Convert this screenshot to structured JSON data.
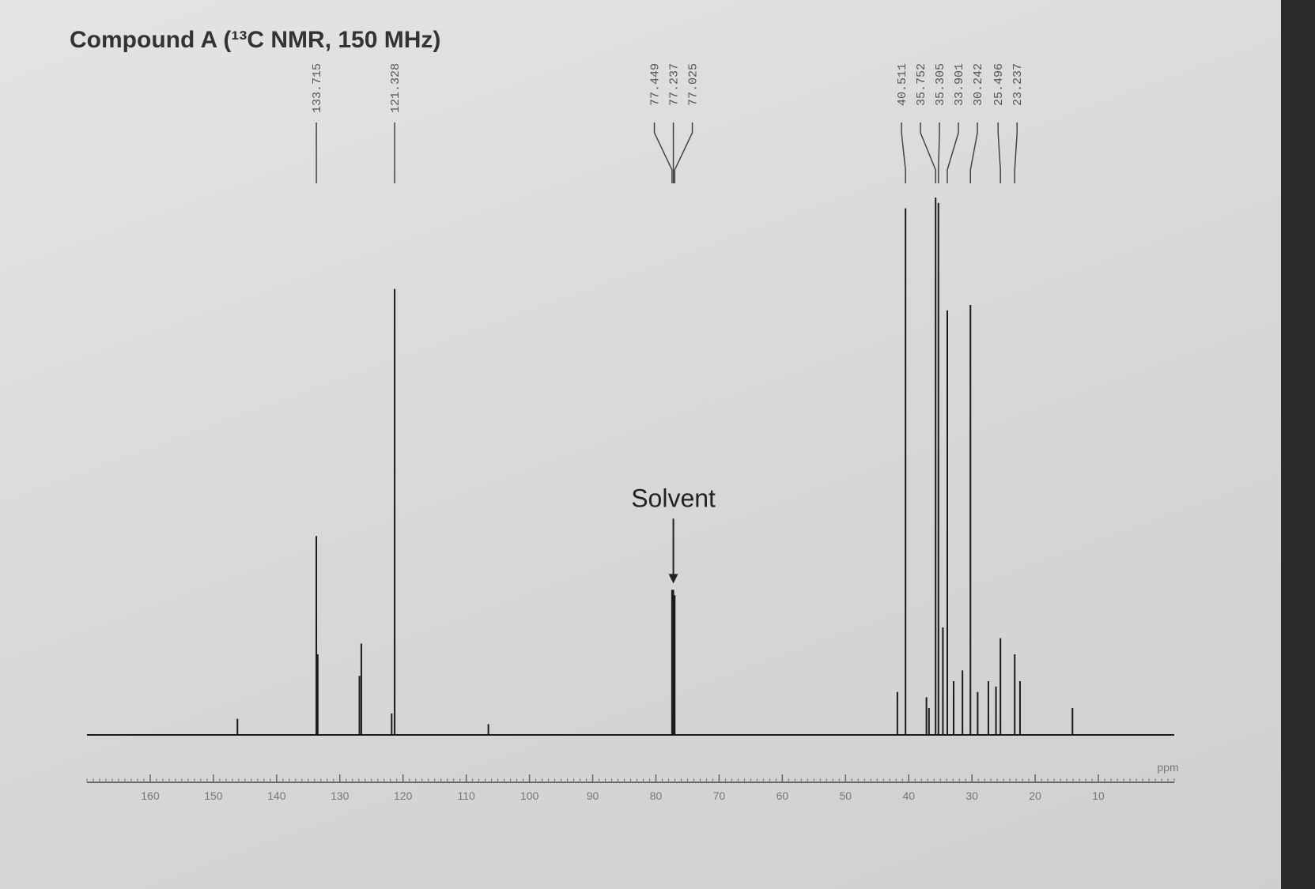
{
  "chart_data": {
    "type": "spectrum",
    "title": "Compound A (¹³C NMR, 150 MHz)",
    "x_label": "ppm",
    "annotation": "Solvent",
    "annotation_x": 77.237,
    "color": "#1a1a1a",
    "x": [
      146.2,
      133.715,
      133.5,
      126.9,
      126.6,
      121.8,
      121.328,
      106.5,
      77.449,
      77.237,
      77.025,
      41.8,
      40.511,
      37.2,
      36.8,
      35.752,
      35.305,
      34.6,
      33.901,
      32.9,
      31.5,
      30.242,
      29.1,
      27.4,
      26.2,
      25.496,
      23.237,
      22.4,
      14.1
    ],
    "values": [
      3,
      37,
      15,
      11,
      17,
      4,
      83,
      2,
      27,
      27,
      26,
      8,
      98,
      7,
      5,
      100,
      99,
      20,
      79,
      10,
      12,
      80,
      8,
      10,
      9,
      18,
      15,
      10,
      5
    ],
    "peak_labels": [
      133.715,
      121.328,
      77.449,
      77.237,
      77.025,
      40.511,
      35.752,
      35.305,
      33.901,
      30.242,
      25.496,
      23.237
    ],
    "xlim": [
      170,
      -2
    ],
    "ylim": [
      0,
      100
    ],
    "xticks": [
      160,
      150,
      140,
      130,
      120,
      110,
      100,
      90,
      80,
      70,
      60,
      50,
      40,
      30,
      20,
      10
    ]
  }
}
